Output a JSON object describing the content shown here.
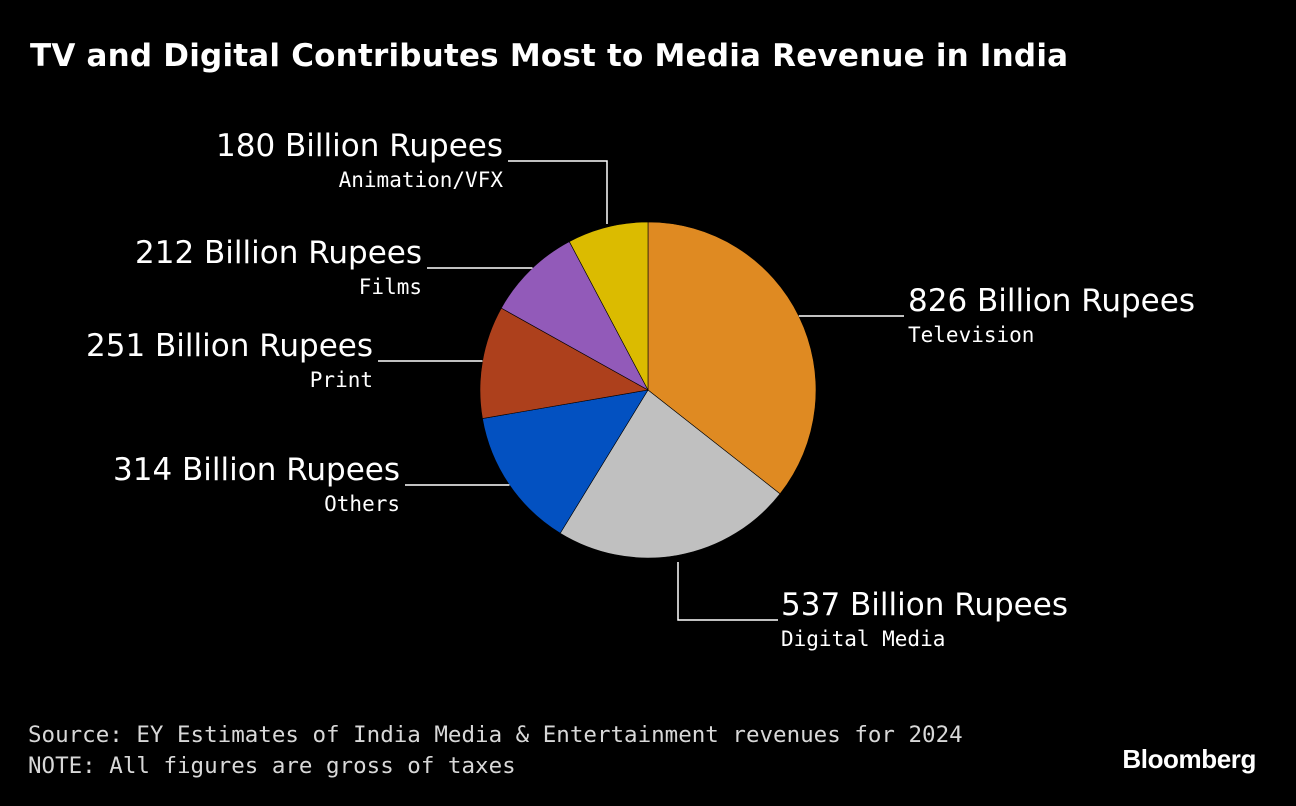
{
  "title": "TV and Digital Contributes Most to Media Revenue in India",
  "source": "Source: EY Estimates of India Media & Entertainment revenues for 2024",
  "note": "NOTE: All figures are gross of taxes",
  "brand": "Bloomberg",
  "chart_data": {
    "type": "pie",
    "unit": "Billion Rupees",
    "slices": [
      {
        "category": "Television",
        "value": 826,
        "label": "826 Billion Rupees",
        "color": "#df8a22"
      },
      {
        "category": "Digital Media",
        "value": 537,
        "label": "537 Billion Rupees",
        "color": "#c0c0c0"
      },
      {
        "category": "Others",
        "value": 314,
        "label": "314 Billion Rupees",
        "color": "#0351c1"
      },
      {
        "category": "Print",
        "value": 251,
        "label": "251 Billion Rupees",
        "color": "#ad401c"
      },
      {
        "category": "Films",
        "value": 212,
        "label": "212 Billion Rupees",
        "color": "#925ab9"
      },
      {
        "category": "Animation/VFX",
        "value": 180,
        "label": "180 Billion Rupees",
        "color": "#dbbb00"
      }
    ]
  }
}
